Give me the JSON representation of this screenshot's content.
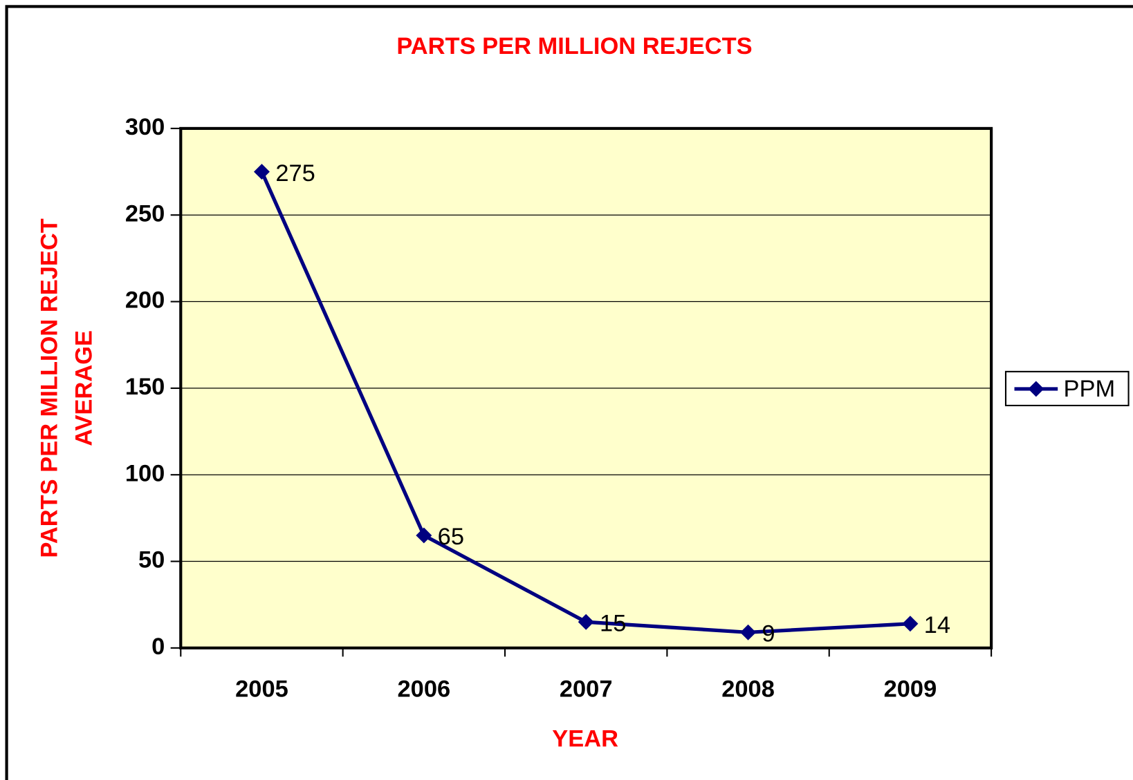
{
  "chart_data": {
    "type": "line",
    "title": "PARTS PER MILLION REJECTS",
    "x_label": "YEAR",
    "y_label": [
      "PARTS PER MILLION REJECT",
      "AVERAGE"
    ],
    "categories": [
      "2005",
      "2006",
      "2007",
      "2008",
      "2009"
    ],
    "series": [
      {
        "name": "PPM",
        "color": "#000080",
        "values": [
          275,
          65,
          15,
          9,
          14
        ]
      }
    ],
    "ylim": [
      0,
      300
    ],
    "yticks": [
      0,
      50,
      100,
      150,
      200,
      250,
      300
    ],
    "grid": true,
    "legend": "right",
    "plot_background": "#ffffcc"
  }
}
